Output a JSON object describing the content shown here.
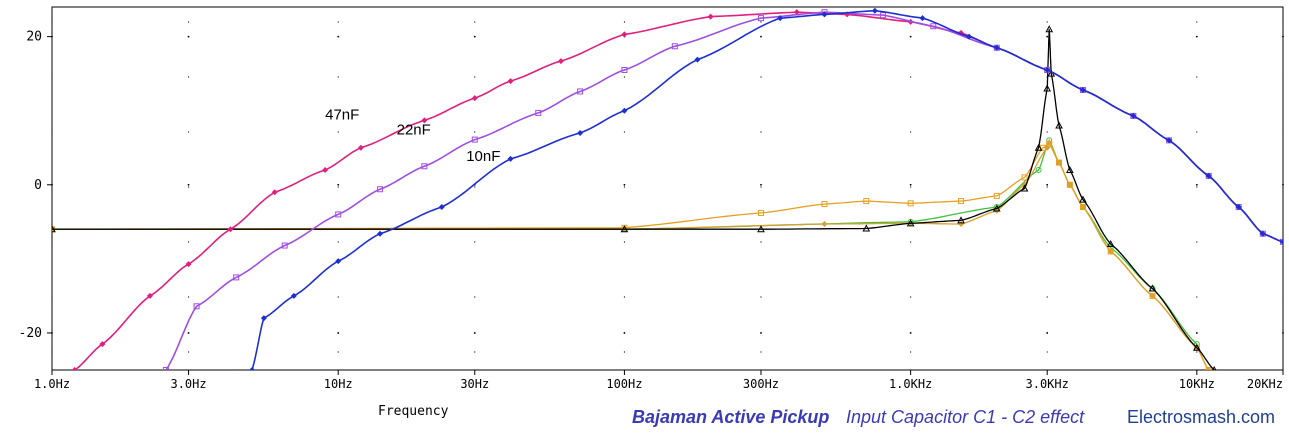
{
  "chart_data": {
    "type": "line",
    "title": "",
    "xlabel": "Frequency",
    "ylabel": "",
    "x_scale": "log",
    "xlim": [
      1,
      20000
    ],
    "ylim": [
      -25,
      24
    ],
    "x_ticks": [
      {
        "v": 1,
        "label": "1.0Hz"
      },
      {
        "v": 3,
        "label": "3.0Hz"
      },
      {
        "v": 10,
        "label": "10Hz"
      },
      {
        "v": 30,
        "label": "30Hz"
      },
      {
        "v": 100,
        "label": "100Hz"
      },
      {
        "v": 300,
        "label": "300Hz"
      },
      {
        "v": 1000,
        "label": "1.0KHz"
      },
      {
        "v": 3000,
        "label": "3.0KHz"
      },
      {
        "v": 10000,
        "label": "10KHz"
      },
      {
        "v": 20000,
        "label": "20KHz"
      }
    ],
    "y_ticks": [
      {
        "v": 20,
        "label": "20"
      },
      {
        "v": 0,
        "label": "0"
      },
      {
        "v": -20,
        "label": "-20"
      }
    ],
    "grid": "dotted",
    "series": [
      {
        "name": "47nF",
        "color": "#e0207f",
        "marker": "diamond",
        "points": [
          [
            1.2,
            -25
          ],
          [
            1.5,
            -21.5
          ],
          [
            2.2,
            -15
          ],
          [
            3,
            -10.7
          ],
          [
            4.2,
            -6
          ],
          [
            6,
            -1
          ],
          [
            9,
            2
          ],
          [
            12,
            5
          ],
          [
            20,
            8.7
          ],
          [
            30,
            11.7
          ],
          [
            40,
            14
          ],
          [
            60,
            16.7
          ],
          [
            100,
            20.3
          ],
          [
            200,
            22.7
          ],
          [
            400,
            23.3
          ],
          [
            600,
            23
          ],
          [
            1000,
            22
          ],
          [
            1500,
            20.5
          ],
          [
            2000,
            18.5
          ],
          [
            3000,
            15.5
          ],
          [
            4000,
            12.8
          ],
          [
            6000,
            9.3
          ],
          [
            8000,
            6
          ],
          [
            11000,
            1.2
          ],
          [
            14000,
            -3
          ],
          [
            17000,
            -6.6
          ],
          [
            20000,
            -7.7
          ]
        ]
      },
      {
        "name": "22nF",
        "color": "#a04ee0",
        "marker": "square",
        "points": [
          [
            2.5,
            -25
          ],
          [
            3.2,
            -16.4
          ],
          [
            4.4,
            -12.5
          ],
          [
            6.5,
            -8.2
          ],
          [
            10,
            -4
          ],
          [
            14,
            -0.6
          ],
          [
            20,
            2.5
          ],
          [
            30,
            6.1
          ],
          [
            50,
            9.7
          ],
          [
            70,
            12.6
          ],
          [
            100,
            15.5
          ],
          [
            150,
            18.7
          ],
          [
            300,
            22.5
          ],
          [
            500,
            23.3
          ],
          [
            800,
            22.9
          ],
          [
            1200,
            21.4
          ],
          [
            2000,
            18.5
          ],
          [
            3000,
            15.5
          ],
          [
            4000,
            12.8
          ],
          [
            6000,
            9.3
          ],
          [
            8000,
            6
          ],
          [
            11000,
            1.2
          ],
          [
            14000,
            -3
          ],
          [
            17000,
            -6.6
          ],
          [
            20000,
            -7.7
          ]
        ]
      },
      {
        "name": "10nF",
        "color": "#1e2fd0",
        "marker": "diamond",
        "points": [
          [
            5,
            -25
          ],
          [
            5.5,
            -18
          ],
          [
            7,
            -15
          ],
          [
            10,
            -10.3
          ],
          [
            14,
            -6.6
          ],
          [
            23,
            -3
          ],
          [
            40,
            3.5
          ],
          [
            70,
            7
          ],
          [
            100,
            10
          ],
          [
            180,
            16.9
          ],
          [
            350,
            22.5
          ],
          [
            500,
            23
          ],
          [
            750,
            23.5
          ],
          [
            1100,
            22.5
          ],
          [
            1600,
            20
          ],
          [
            2000,
            18.5
          ],
          [
            3000,
            15.5
          ],
          [
            4000,
            12.8
          ],
          [
            6000,
            9.3
          ],
          [
            8000,
            6
          ],
          [
            11000,
            1.2
          ],
          [
            14000,
            -3
          ],
          [
            17000,
            -6.6
          ],
          [
            20000,
            -7.7
          ]
        ]
      },
      {
        "name": "",
        "color": "#000000",
        "marker": "triangle",
        "points": [
          [
            1,
            -6
          ],
          [
            100,
            -6
          ],
          [
            300,
            -6
          ],
          [
            700,
            -5.9
          ],
          [
            1000,
            -5.2
          ],
          [
            1500,
            -4.8
          ],
          [
            2000,
            -3.2
          ],
          [
            2500,
            -0.5
          ],
          [
            2800,
            5
          ],
          [
            3000,
            13
          ],
          [
            3050,
            21
          ],
          [
            3100,
            15
          ],
          [
            3300,
            8
          ],
          [
            3600,
            2
          ],
          [
            4000,
            -2
          ],
          [
            5000,
            -8
          ],
          [
            7000,
            -14
          ],
          [
            10000,
            -22
          ],
          [
            11500,
            -25
          ]
        ]
      },
      {
        "name": "",
        "color": "#e6a020",
        "marker": "square",
        "points": [
          [
            1,
            -6
          ],
          [
            100,
            -5.8
          ],
          [
            300,
            -3.8
          ],
          [
            500,
            -2.6
          ],
          [
            700,
            -2.2
          ],
          [
            1000,
            -2.5
          ],
          [
            1500,
            -2.2
          ],
          [
            2000,
            -1.5
          ],
          [
            2500,
            1
          ],
          [
            2900,
            5
          ],
          [
            3050,
            5.5
          ],
          [
            3300,
            3
          ],
          [
            3600,
            0
          ],
          [
            4000,
            -3
          ],
          [
            5000,
            -9
          ],
          [
            7000,
            -15
          ],
          [
            10000,
            -22
          ],
          [
            11000,
            -25
          ]
        ]
      },
      {
        "name": "",
        "color": "#d8a030",
        "marker": "diamond",
        "points": [
          [
            1,
            -6
          ],
          [
            100,
            -6
          ],
          [
            500,
            -5.3
          ],
          [
            1000,
            -5.2
          ],
          [
            1500,
            -5.3
          ],
          [
            2000,
            -3.5
          ],
          [
            2500,
            0
          ],
          [
            3000,
            5
          ],
          [
            3050,
            5.7
          ],
          [
            3300,
            3
          ],
          [
            3600,
            0
          ],
          [
            4000,
            -3
          ],
          [
            5000,
            -9
          ],
          [
            7000,
            -15
          ],
          [
            10000,
            -22
          ],
          [
            11000,
            -25
          ]
        ]
      },
      {
        "name": "",
        "color": "#40c040",
        "marker": "circle",
        "points": [
          [
            1,
            -6
          ],
          [
            100,
            -6
          ],
          [
            1000,
            -5
          ],
          [
            2000,
            -3
          ],
          [
            2800,
            2
          ],
          [
            3050,
            6
          ],
          [
            3300,
            3
          ],
          [
            3600,
            0
          ],
          [
            4000,
            -3
          ],
          [
            5000,
            -8.5
          ],
          [
            7000,
            -14
          ],
          [
            10000,
            -21.5
          ]
        ]
      }
    ],
    "annotations": [
      {
        "text": "47nF",
        "x": 9.0,
        "y": 8.8
      },
      {
        "text": "22nF",
        "x": 16.0,
        "y": 6.8
      },
      {
        "text": "10nF",
        "x": 28.0,
        "y": 3.2
      }
    ]
  },
  "footer": {
    "product": "Bajaman Active Pickup",
    "description": "Input Capacitor C1 - C2 effect",
    "site": "Electrosmash.com"
  }
}
